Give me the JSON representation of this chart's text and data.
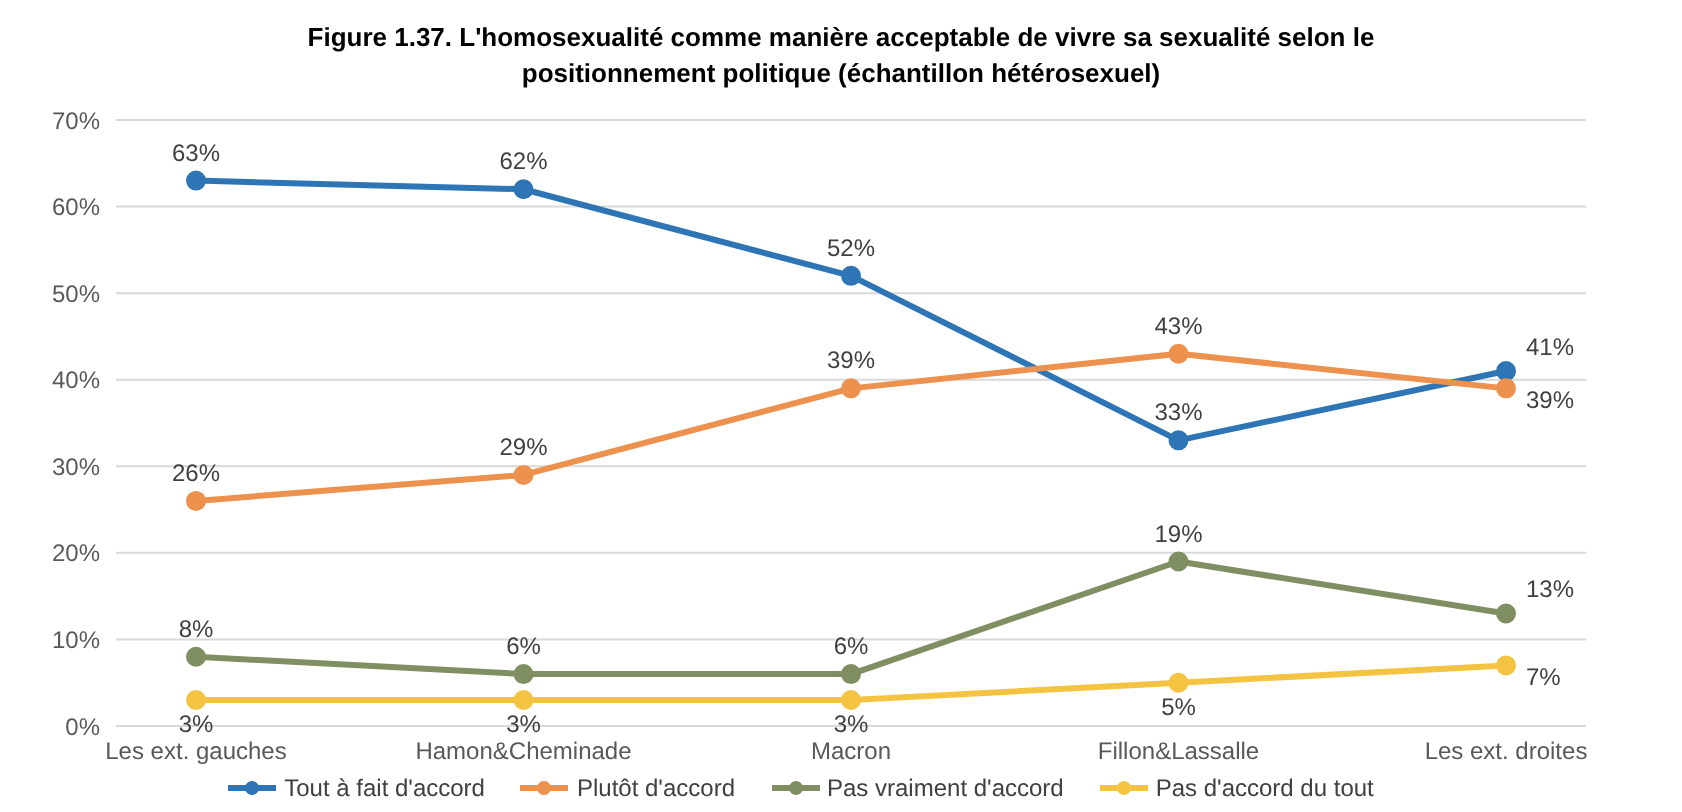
{
  "chart_data": {
    "type": "line",
    "title": "Figure 1.37. L'homosexualité comme manière acceptable de vivre sa sexualité selon le positionnement politique (échantillon hétérosexuel)",
    "categories": [
      "Les ext. gauches",
      "Hamon&Cheminade",
      "Macron",
      "Fillon&Lassalle",
      "Les ext. droites"
    ],
    "series": [
      {
        "name": "Tout à fait d'accord",
        "color": "#2e75b6",
        "values": [
          63,
          62,
          52,
          33,
          41
        ],
        "value_labels": [
          "63%",
          "62%",
          "52%",
          "33%",
          "41%"
        ]
      },
      {
        "name": "Plutôt d'accord",
        "color": "#ed914e",
        "values": [
          26,
          29,
          39,
          43,
          39
        ],
        "value_labels": [
          "26%",
          "29%",
          "39%",
          "43%",
          "39%"
        ]
      },
      {
        "name": "Pas vraiment d'accord",
        "color": "#7f8f62",
        "values": [
          8,
          6,
          6,
          19,
          13
        ],
        "value_labels": [
          "8%",
          "6%",
          "6%",
          "19%",
          "13%"
        ]
      },
      {
        "name": "Pas d'accord du tout",
        "color": "#f5c342",
        "values": [
          3,
          3,
          3,
          5,
          7
        ],
        "value_labels": [
          "3%",
          "3%",
          "3%",
          "5%",
          "7%"
        ]
      }
    ],
    "ylim": [
      0,
      70
    ],
    "yticks": [
      {
        "value": 0,
        "label": "0%"
      },
      {
        "value": 10,
        "label": "10%"
      },
      {
        "value": 20,
        "label": "20%"
      },
      {
        "value": 30,
        "label": "30%"
      },
      {
        "value": 40,
        "label": "40%"
      },
      {
        "value": 50,
        "label": "50%"
      },
      {
        "value": 60,
        "label": "60%"
      },
      {
        "value": 70,
        "label": "70%"
      }
    ],
    "grid": "y",
    "legend": "bottom",
    "marker": "circle",
    "line_style": "solid"
  }
}
